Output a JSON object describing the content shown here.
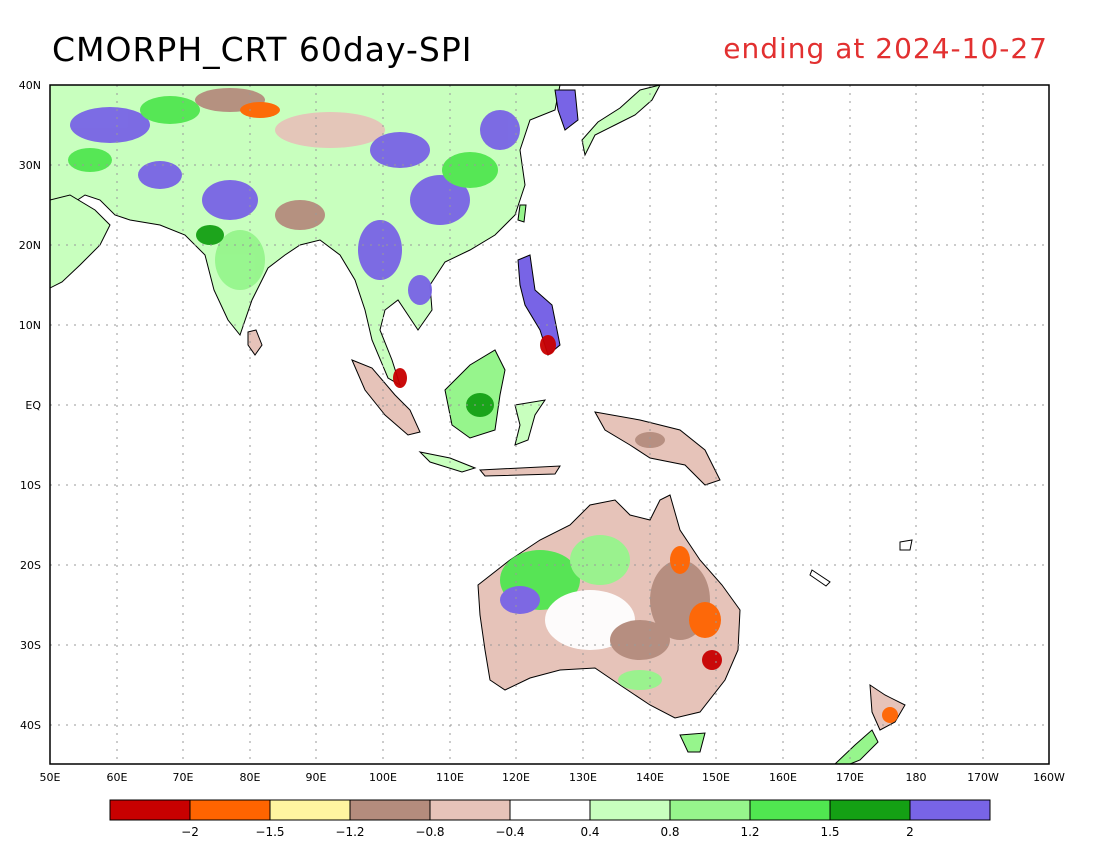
{
  "title": "CMORPH_CRT 60day-SPI",
  "subtitle": "ending at 2024-10-27",
  "colors": {
    "ocean": "#ffffff",
    "coast": "#000000",
    "grid": "#999999",
    "title_right": "#e23030"
  },
  "lat_labels": [
    "40N",
    "30N",
    "20N",
    "10N",
    "EQ",
    "10S",
    "20S",
    "30S",
    "40S"
  ],
  "lon_labels": [
    "50E",
    "60E",
    "70E",
    "80E",
    "90E",
    "100E",
    "110E",
    "120E",
    "130E",
    "140E",
    "150E",
    "160E",
    "170E",
    "180",
    "170W",
    "160W"
  ],
  "legend": {
    "colors": [
      "#c80000",
      "#ff6400",
      "#fff5a0",
      "#b48c7d",
      "#e6c3b9",
      "#ffffff",
      "#c8ffbe",
      "#96f58c",
      "#50e650",
      "#14a014",
      "#7864e6"
    ],
    "labels": [
      "-2",
      "-1.5",
      "-1.2",
      "-0.8",
      "-0.4",
      "0.4",
      "0.8",
      "1.2",
      "1.5",
      "2"
    ]
  }
}
